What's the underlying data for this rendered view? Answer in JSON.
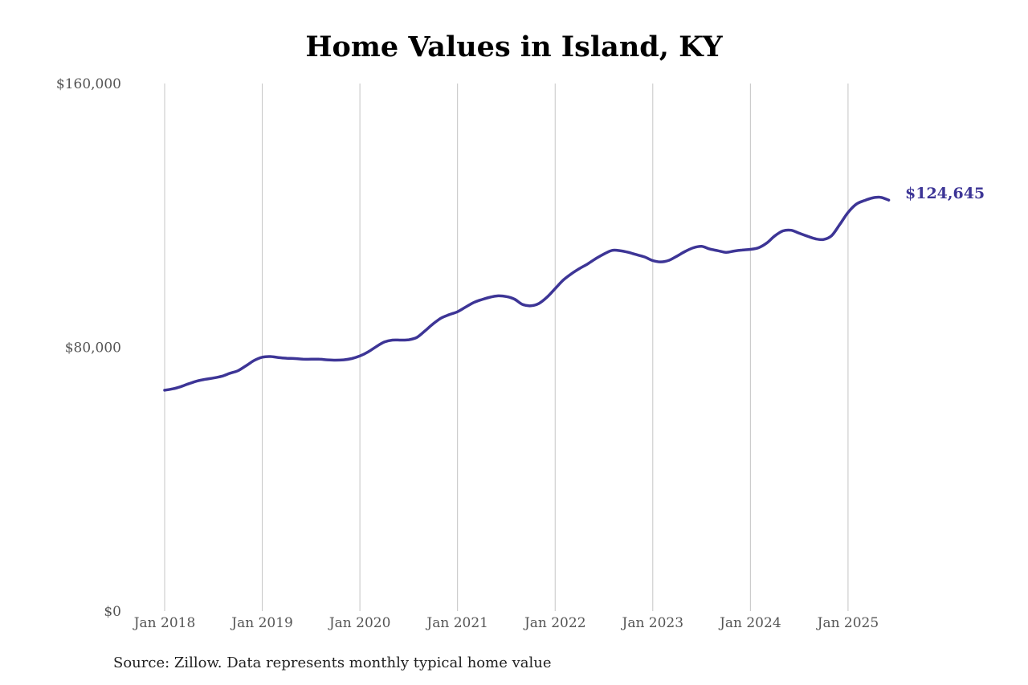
{
  "title": "Home Values in Island, KY",
  "source": "Source: Zillow. Data represents monthly typical home value",
  "end_label": "$124,645",
  "colors": {
    "line": "#3d3596",
    "end_label": "#3d3596",
    "gridline": "#c4c4c4",
    "tick_text": "#555555",
    "title": "#000000"
  },
  "chart_data": {
    "type": "line",
    "title": "Home Values in Island, KY",
    "xlabel": "",
    "ylabel": "",
    "ylim": [
      0,
      160000
    ],
    "y_ticks": [
      {
        "value": 0,
        "label": "$0"
      },
      {
        "value": 80000,
        "label": "$80,000"
      },
      {
        "value": 160000,
        "label": "$160,000"
      }
    ],
    "x_ticks": [
      {
        "value": "2018-01",
        "label": "Jan 2018"
      },
      {
        "value": "2019-01",
        "label": "Jan 2019"
      },
      {
        "value": "2020-01",
        "label": "Jan 2020"
      },
      {
        "value": "2021-01",
        "label": "Jan 2021"
      },
      {
        "value": "2022-01",
        "label": "Jan 2022"
      },
      {
        "value": "2023-01",
        "label": "Jan 2023"
      },
      {
        "value": "2024-01",
        "label": "Jan 2024"
      },
      {
        "value": "2025-01",
        "label": "Jan 2025"
      }
    ],
    "grid": {
      "vertical": true,
      "horizontal": false
    },
    "legend": "none",
    "series": [
      {
        "x": [
          "2018-01",
          "2018-02",
          "2018-03",
          "2018-04",
          "2018-05",
          "2018-06",
          "2018-07",
          "2018-08",
          "2018-09",
          "2018-10",
          "2018-11",
          "2018-12",
          "2019-01",
          "2019-02",
          "2019-03",
          "2019-04",
          "2019-05",
          "2019-06",
          "2019-07",
          "2019-08",
          "2019-09",
          "2019-10",
          "2019-11",
          "2019-12",
          "2020-01",
          "2020-02",
          "2020-03",
          "2020-04",
          "2020-05",
          "2020-06",
          "2020-07",
          "2020-08",
          "2020-09",
          "2020-10",
          "2020-11",
          "2020-12",
          "2021-01",
          "2021-02",
          "2021-03",
          "2021-04",
          "2021-05",
          "2021-06",
          "2021-07",
          "2021-08",
          "2021-09",
          "2021-10",
          "2021-11",
          "2021-12",
          "2022-01",
          "2022-02",
          "2022-03",
          "2022-04",
          "2022-05",
          "2022-06",
          "2022-07",
          "2022-08",
          "2022-09",
          "2022-10",
          "2022-11",
          "2022-12",
          "2023-01",
          "2023-02",
          "2023-03",
          "2023-04",
          "2023-05",
          "2023-06",
          "2023-07",
          "2023-08",
          "2023-09",
          "2023-10",
          "2023-11",
          "2023-12",
          "2024-01",
          "2024-02",
          "2024-03",
          "2024-04",
          "2024-05",
          "2024-06",
          "2024-07",
          "2024-08",
          "2024-09",
          "2024-10",
          "2024-11",
          "2024-12",
          "2025-01",
          "2025-02",
          "2025-03",
          "2025-04",
          "2025-05",
          "2025-06"
        ],
        "values": [
          67000,
          67400,
          68100,
          69000,
          69800,
          70300,
          70700,
          71200,
          72100,
          72900,
          74400,
          76000,
          77000,
          77200,
          76900,
          76700,
          76600,
          76400,
          76400,
          76400,
          76200,
          76100,
          76200,
          76600,
          77400,
          78600,
          80200,
          81600,
          82200,
          82200,
          82300,
          83000,
          85000,
          87100,
          88900,
          89900,
          90800,
          92200,
          93600,
          94500,
          95200,
          95600,
          95400,
          94600,
          93000,
          92600,
          93300,
          95200,
          97800,
          100400,
          102300,
          103900,
          105300,
          106900,
          108300,
          109400,
          109300,
          108800,
          108100,
          107400,
          106300,
          105900,
          106400,
          107700,
          109100,
          110200,
          110600,
          109800,
          109300,
          108800,
          109200,
          109500,
          109700,
          110200,
          111600,
          113800,
          115300,
          115500,
          114600,
          113700,
          112900,
          112700,
          113900,
          117300,
          120900,
          123400,
          124500,
          125300,
          125500,
          124645
        ]
      }
    ]
  }
}
